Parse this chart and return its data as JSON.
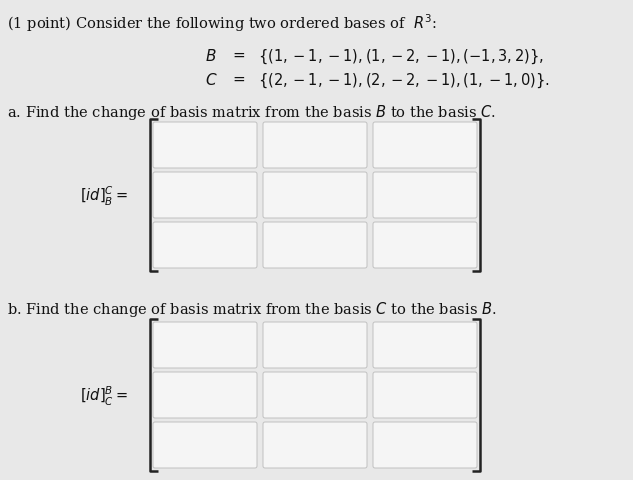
{
  "bg_color": "#e8e8e8",
  "title_text": "(1 point) Consider the following two ordered bases of  $R^3$:",
  "B_label": "$B$",
  "B_set": "$\\{(1,-1,-1),(1,-2,-1),(-1,3,2)\\},$",
  "C_label": "$C$",
  "C_set": "$\\{(2,-1,-1),(2,-2,-1),(1,-1,0)\\}.$",
  "part_a_text": "a. Find the change of basis matrix from the basis $B$ to the basis $C$.",
  "part_b_text": "b. Find the change of basis matrix from the basis $C$ to the basis $B$.",
  "label_a": "$[id]^C_B =$",
  "label_b": "$[id]^B_C =$",
  "box_fill": "#f5f5f5",
  "box_border": "#c0c0c0",
  "bracket_color": "#222222",
  "text_color": "#111111",
  "font_size_title": 10.5,
  "font_size_body": 10.5,
  "font_size_label": 10.5
}
